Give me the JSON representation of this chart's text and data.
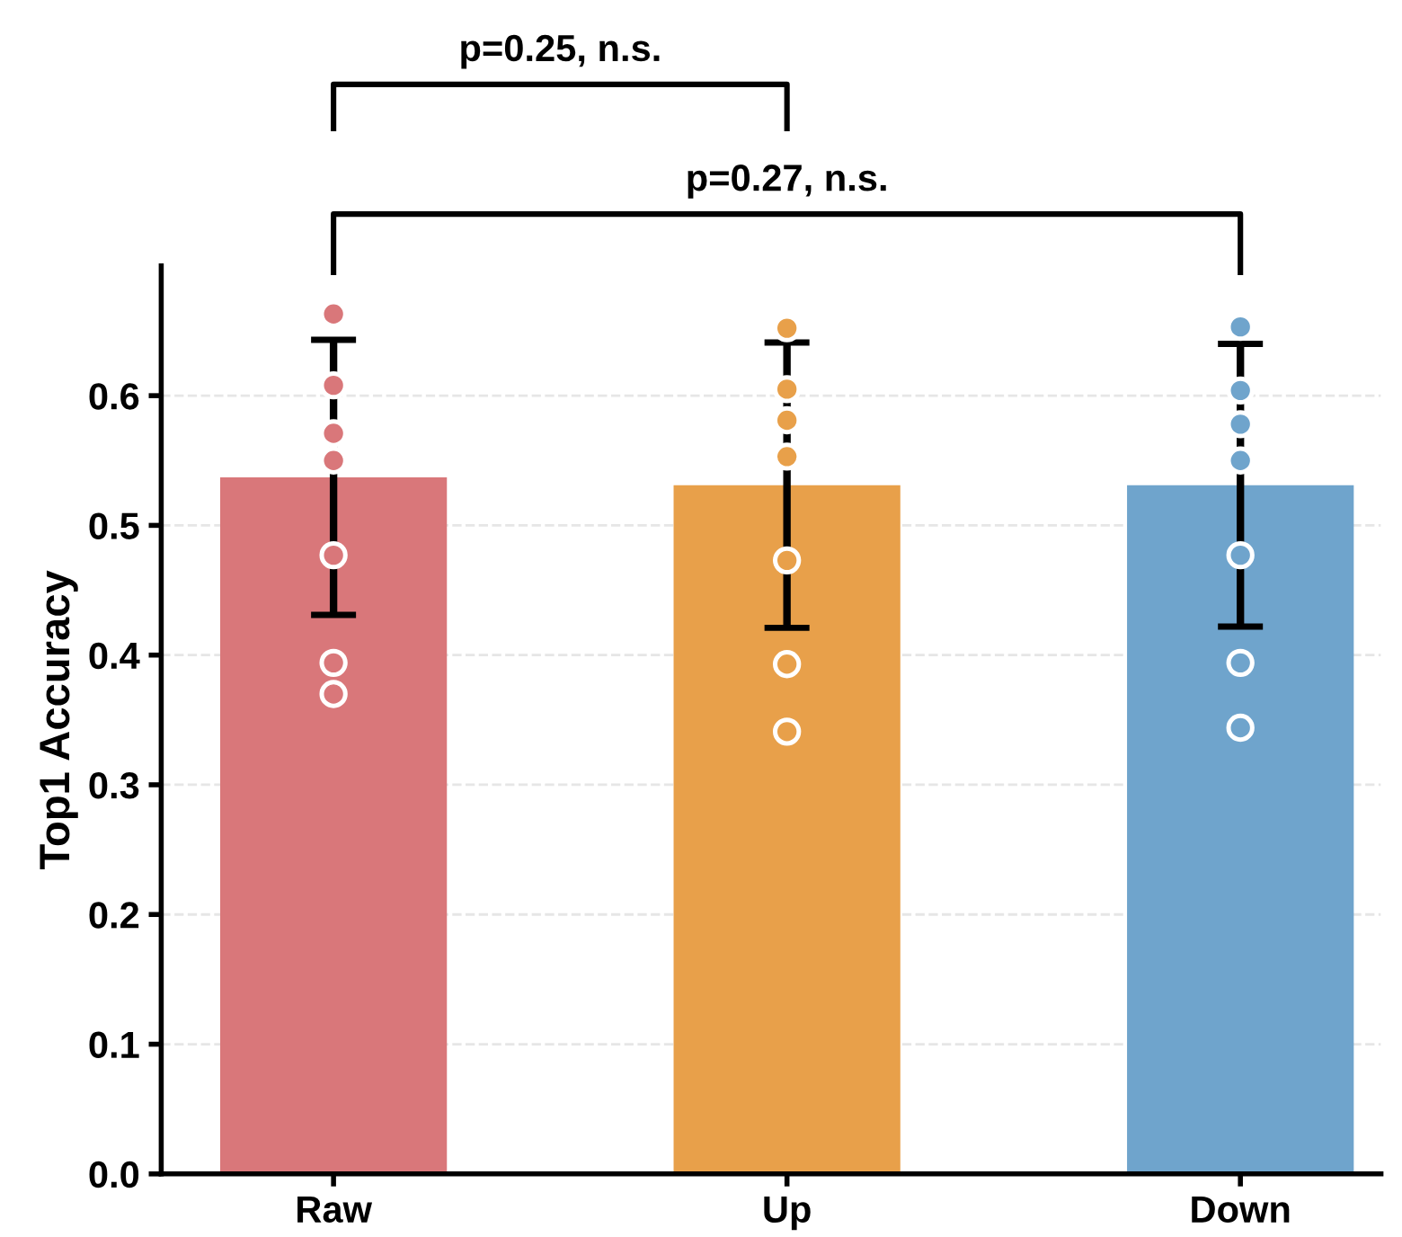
{
  "chart_data": {
    "type": "bar",
    "ylabel": "Top1 Accuracy",
    "categories": [
      "Raw",
      "Up",
      "Down"
    ],
    "series": [
      {
        "values": [
          0.537,
          0.531,
          0.531
        ],
        "colors": [
          "#d9777a",
          "#e8a04a",
          "#6fa4cc"
        ],
        "errors": [
          0.106,
          0.11,
          0.109
        ]
      },
      {
        "type": "scatter",
        "x": [
          "Raw",
          "Raw",
          "Raw",
          "Raw",
          "Raw",
          "Raw",
          "Raw",
          "Up",
          "Up",
          "Up",
          "Up",
          "Up",
          "Up",
          "Up",
          "Down",
          "Down",
          "Down",
          "Down",
          "Down",
          "Down",
          "Down"
        ],
        "values": [
          0.663,
          0.608,
          0.571,
          0.55,
          0.477,
          0.394,
          0.37,
          0.652,
          0.605,
          0.581,
          0.553,
          0.473,
          0.393,
          0.341,
          0.653,
          0.604,
          0.578,
          0.55,
          0.477,
          0.394,
          0.344
        ],
        "colors": [
          "#d9777a",
          "#d9777a",
          "#d9777a",
          "#d9777a",
          "#d9777a",
          "#d9777a",
          "#d9777a",
          "#e8a04a",
          "#e8a04a",
          "#e8a04a",
          "#e8a04a",
          "#e8a04a",
          "#e8a04a",
          "#e8a04a",
          "#6fa4cc",
          "#6fa4cc",
          "#6fa4cc",
          "#6fa4cc",
          "#6fa4cc",
          "#6fa4cc",
          "#6fa4cc"
        ]
      }
    ],
    "ylim": [
      0,
      0.7
    ],
    "yticks": [
      {
        "value": 0,
        "label": "0.0"
      },
      0.1,
      0.2,
      0.3,
      0.4,
      0.5,
      0.6
    ],
    "grid": "y",
    "marker": "circle",
    "annotations": [
      "p=0.25, n.s.",
      "p=0.27, n.s."
    ]
  }
}
